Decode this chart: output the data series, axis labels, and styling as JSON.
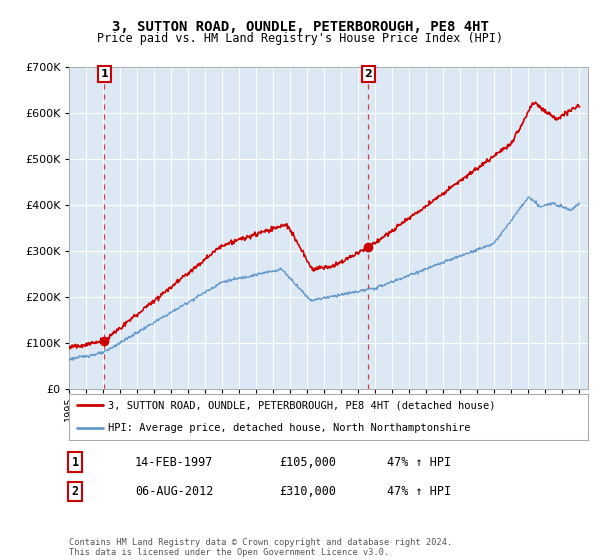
{
  "title": "3, SUTTON ROAD, OUNDLE, PETERBOROUGH, PE8 4HT",
  "subtitle": "Price paid vs. HM Land Registry's House Price Index (HPI)",
  "background_color": "#dce9f5",
  "plot_bg_color": "#dce9f5",
  "red_line_label": "3, SUTTON ROAD, OUNDLE, PETERBOROUGH, PE8 4HT (detached house)",
  "blue_line_label": "HPI: Average price, detached house, North Northamptonshire",
  "transaction1_date": "14-FEB-1997",
  "transaction1_price": 105000,
  "transaction1_hpi": "47% ↑ HPI",
  "transaction2_date": "06-AUG-2012",
  "transaction2_price": 310000,
  "transaction2_hpi": "47% ↑ HPI",
  "footer": "Contains HM Land Registry data © Crown copyright and database right 2024.\nThis data is licensed under the Open Government Licence v3.0.",
  "ylim": [
    0,
    700000
  ],
  "yticks": [
    0,
    100000,
    200000,
    300000,
    400000,
    500000,
    600000,
    700000
  ],
  "red_color": "#cc0000",
  "blue_color": "#6699cc",
  "grid_color": "#ffffff",
  "spine_color": "#aaaaaa"
}
